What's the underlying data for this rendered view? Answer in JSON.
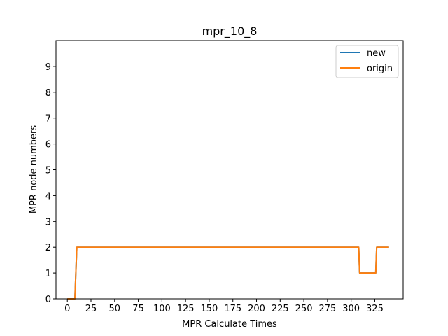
{
  "chart_data": {
    "type": "line",
    "title": "mpr_10_8",
    "xlabel": "MPR Calculate Times",
    "ylabel": "MPR node numbers",
    "xlim": [
      -12,
      355
    ],
    "ylim": [
      0,
      10
    ],
    "xticks": [
      0,
      25,
      50,
      75,
      100,
      125,
      150,
      175,
      200,
      225,
      250,
      275,
      300,
      325
    ],
    "yticks": [
      0,
      1,
      2,
      3,
      4,
      5,
      6,
      7,
      8,
      9
    ],
    "grid": false,
    "legend_position": "top-right",
    "series": [
      {
        "name": "new",
        "color": "#1f77b4",
        "x": [
          0,
          8,
          10,
          308,
          309,
          326,
          327,
          340
        ],
        "y": [
          0,
          0,
          2,
          2,
          1,
          1,
          2,
          2
        ]
      },
      {
        "name": "origin",
        "color": "#ff7f0e",
        "x": [
          0,
          8,
          10,
          308,
          309,
          326,
          327,
          340
        ],
        "y": [
          0,
          0,
          2,
          2,
          1,
          1,
          2,
          2
        ]
      }
    ]
  }
}
